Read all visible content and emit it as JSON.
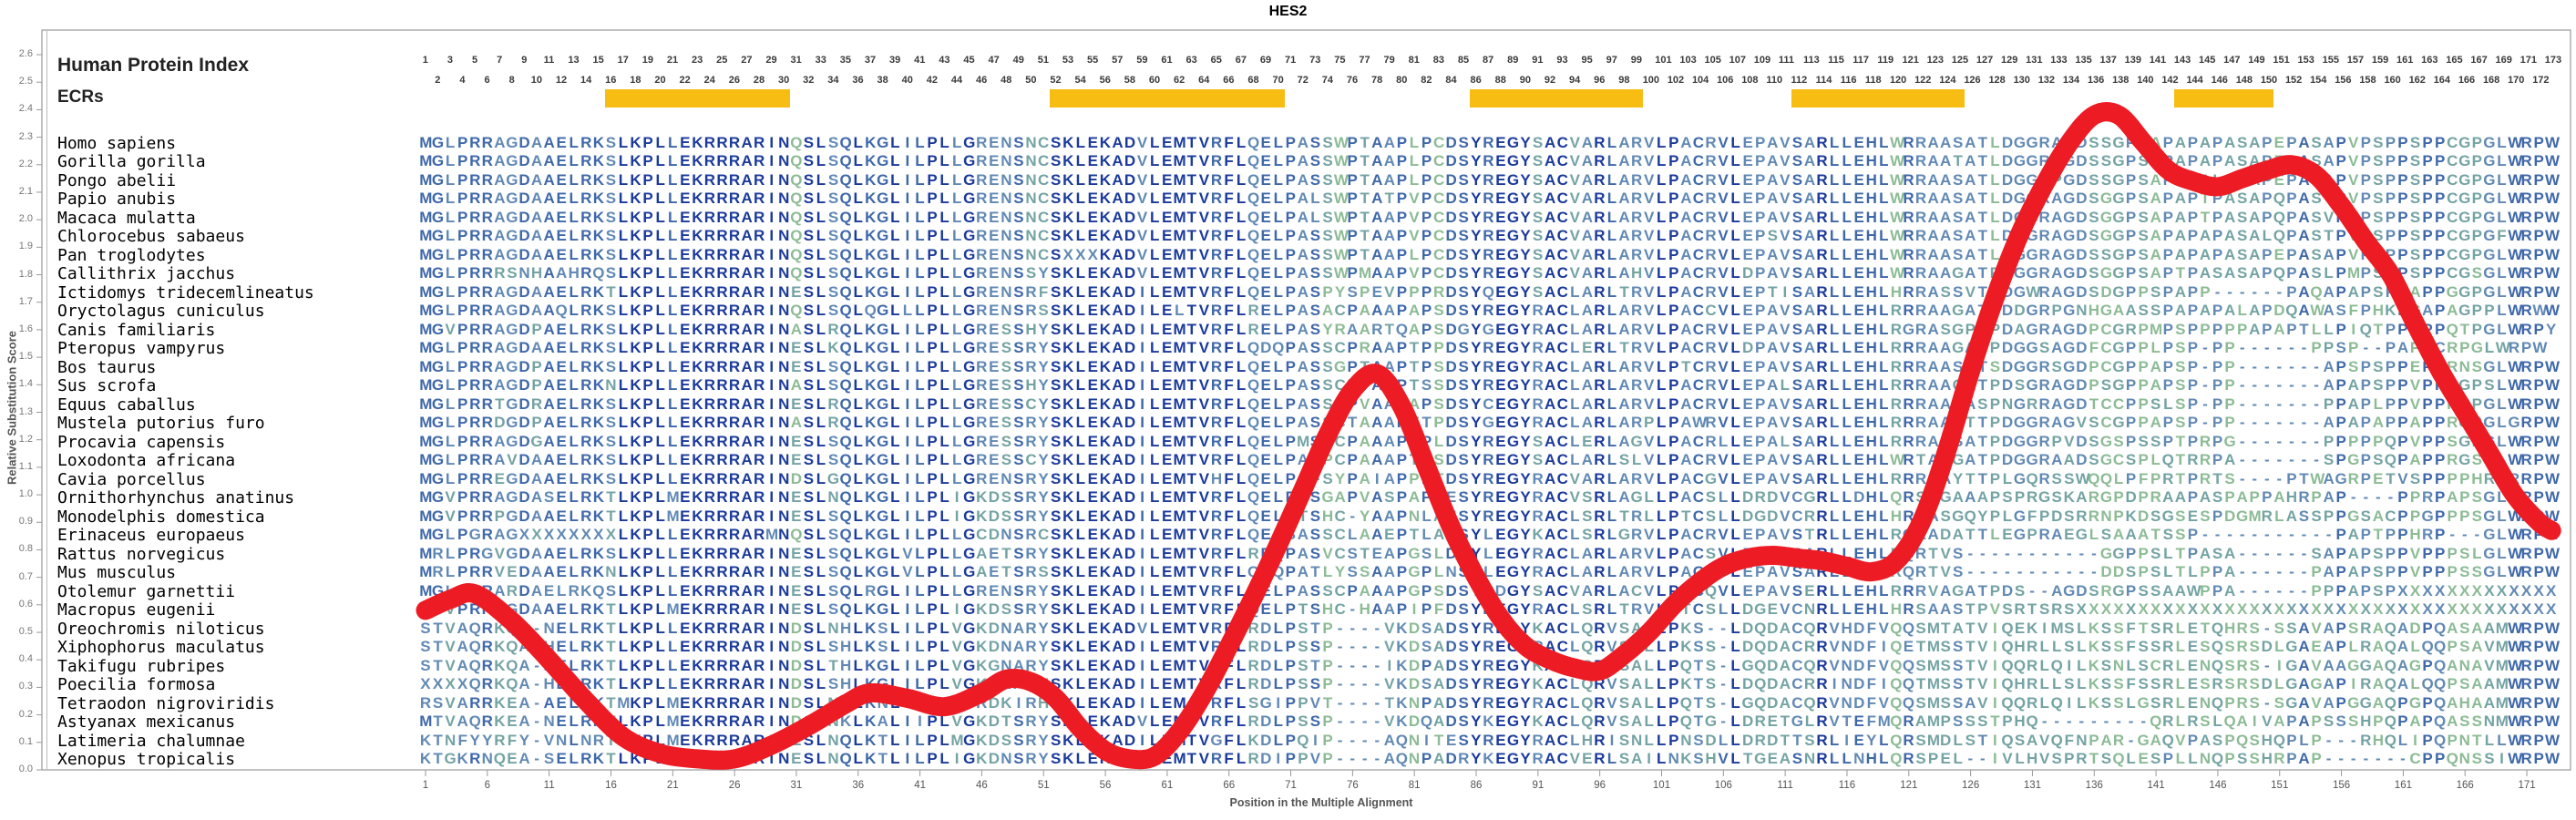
{
  "title": "HES2",
  "header": {
    "human_protein_index_label": "Human Protein Index",
    "ecrs_label": "ECRs",
    "columns": 173
  },
  "axes": {
    "y_label": "Relative Substitution Score",
    "x_label": "Position in the Multiple Alignment",
    "y_ticks": [
      "0.0",
      "0.1",
      "0.2",
      "0.3",
      "0.4",
      "0.5",
      "0.6",
      "0.7",
      "0.8",
      "0.9",
      "1.0",
      "1.1",
      "1.2",
      "1.3",
      "1.4",
      "1.5",
      "1.6",
      "1.7",
      "1.8",
      "1.9",
      "2.0",
      "2.1",
      "2.2",
      "2.3",
      "2.4",
      "2.5",
      "2.6"
    ],
    "x_ticks": [
      1,
      6,
      11,
      16,
      21,
      26,
      31,
      36,
      41,
      46,
      51,
      56,
      61,
      66,
      71,
      76,
      81,
      86,
      91,
      96,
      101,
      106,
      111,
      116,
      121,
      126,
      131,
      136,
      141,
      146,
      151,
      156,
      161,
      166,
      171
    ],
    "y_max": 2.6
  },
  "ecr_regions": [
    {
      "start": 16,
      "end": 30
    },
    {
      "start": 52,
      "end": 70
    },
    {
      "start": 86,
      "end": 99
    },
    {
      "start": 112,
      "end": 125
    },
    {
      "start": 143,
      "end": 150
    }
  ],
  "alignment": {
    "species": [
      {
        "name": "Homo sapiens",
        "sequence": "MGLPRRAGDAAELRKSLKPLLEKRRRARINQSLSQLKGLILPLLGRENSNCSKLEKADVLEMTVRFLQELPASSWPTAAPLPCDSYREGYSACVARLARVLPACRVLEPAVSARLLEHLWRRAASATLDGGRAGDSSGPSAPAPAPASAPEPASAPVPSPPSPPCGPGLWRPW"
      },
      {
        "name": "Gorilla gorilla",
        "sequence": "MGLPRRAGDAAELRKSLKPLLEKRRRARINQSLSQLKGLILPLLGRENSNCSKLEKADVLEMTVRFLQELPASSWPTAAPLPCDSYREGYSACVARLARVLPACRVLEPAVSARLLEHLWRRAATATLDGGRAGDSSGPSAPAPAPASAPEPASAPVPSPPSPPCGPGLWRPW"
      },
      {
        "name": "Pongo abelii",
        "sequence": "MGLPRRAGDAAELRKSLKPLLEKRRRARINQSLSQLKGLILPLLGRENSNCSKLEKADVLEMTVRFLQELPASSWPTAAPLPCDSYREGYSACVARLARVLPACRVLEPAVSARLLEHLWRRAASATLDGGRPGDSSGPSAPAPALASAPEPASAPVPSPPSPPCGPGLWRPW"
      },
      {
        "name": "Papio anubis",
        "sequence": "MGLPRRAGDAAELRKSLKPLLEKRRRARINQSLSQLKGLILPLLGRENSNCSKLEKADVLEMTVRFLQELPALSWPTATPVPCDSYREGYSACVARLARVLPACRVLEPAVSARLLEHLWRRAASATLDGGRAGDSGGPSAPAPTPASAPQPASVPVPSPPSPPCGPGLWRPW"
      },
      {
        "name": "Macaca mulatta",
        "sequence": "MGLPRRAGDAAELRKSLKPLLEKRRRARINQSLSQLKGLILPLLGRENSNCSKLEKADVLEMTVRFLQELPALSWPTAAPVPCDSYREGYSACVARLARVLPACRVLEPAVSARLLEHLWRRAASATLDGGRAGDSGGPSAPAPTPASAPQPASVPVPSPPSPPCGPGLWRPW"
      },
      {
        "name": "Chlorocebus sabaeus",
        "sequence": "MGLPRRAGDAAELRKSLKPLLEKRRRARINQSLSQLKGLILPLLGRENSNCSKLEKADVLEMTVRFLQELPASSWPTAAPVPCDSYREGYSACVARLARVLPACRVLEPSVSARLLEHLWRRAASATLDGGRAGDSGGPSAPAPAPASALQPASTPVPSPPSPPCGPGFWRPW"
      },
      {
        "name": "Pan troglodytes",
        "sequence": "MGLPRRAGDAAELRKSLKPLLEKRRRARINQSLSQLKGLILPLLGRENSNCSXXXKADVLEMTVRFLQELPASSWPTAAPLPCDSYREGYSACVARLARVLPACRVLEPAVSARLLEHLWRRAASATLDGGRAGDSSGPSAPAPAPASAPEPASAPVPSPPSPPCGPGLWRPW"
      },
      {
        "name": "Callithrix jacchus",
        "sequence": "MGLPRRRSNHAAHRQSLKPLLEKRRRARINQSLSQLKGLILPLLGRENSSYSKLEKADVLEMTVRFLQELPASSWPMAAPVPCDSYREGYSACVARLAHVLPACRVLDPAVSARLLEHLWRRAAGATPDGGRAGDSGGPSAPTPASASAPQPASLPMPSPPSPPCGSGLWRPW"
      },
      {
        "name": "Ictidomys tridecemlineatus",
        "sequence": "MGLPRRAGDAAELRKTLKPLLEKRRRARINESLSQLKGLILPLLGRENSRFSKLEKADILEMTVRFLQELPASPYSPEVPPPRDSYQEGYSACLARLTRVLPACRVLEPTISARLLEHLHRRASSVTPDGWRAGDSDGPPSPAPP------PAQAPAPSPPAPPGGPGLWRPW"
      },
      {
        "name": "Oryctolagus cuniculus",
        "sequence": "MGLPRRAGDAAQLRKSLKPLLEKRRRARINQSLSQLQGLLLPLLGRENSRSSKLEKADILELTVRFLRELPASACPAAAPAPSDSYREGYRACLARLARVLPACCVLEPAVSARLLEHLRRRAAGATPDDGRPGNHGAASSPAPAPALAPDQAWASFPHKPGAPAGPPLWRWW"
      },
      {
        "name": "Canis familiaris",
        "sequence": "MGVPRRAGDPAELRKSLKPLLEKRRRARINASLRQLKGLILPLLGRESSHYSKLEKADILEMTVRFLRELPASYRAARTQAPSDGYGEGYRACLARLARVLPACRVLEPAVSARLLEHLRGRASGPAPDAGRAGDPCGRPMPSPPPPPAPAPTLLPIQTPPSPPQTPGLWRPY"
      },
      {
        "name": "Pteropus vampyrus",
        "sequence": "MGLPRRAGDAAELRKSLKPLLEKRRRARINESLKQLKGLILPLLGRESSRYSKLEKADILEMTVRFLQDQPASSCPRAAPTPPDSYREGYRACLERLTRVLPACRVLDPAVSARLLEHLRRRAAGATPDGGSAGDFCGPPLPSP-PP------PPSP--PAPPCRPGLWRPW"
      },
      {
        "name": "Bos taurus",
        "sequence": "MGLPRRAGDPAELRKSLKPLLEKRRRARINESLSQLKGLILPLLGRESSRYSKLEKADILEMTVRFLQELPASSGPTAAPTPSDSYREGYRACLARLARVLPTCRVLEPAVSARLLEHLRRRAASATSDGGRSGDPCGPPAPSP-PP-------APSPSPPEPPRNSGLWRPW"
      },
      {
        "name": "Sus scrofa",
        "sequence": "MGLPRRAGDPAELRKNLKPLLEKRRRARINASLSQLKGLILPLLGRESSHYSKLEKADILEMTVRFLQELPASSCPTAAPTSSDSYREGYRACLARLARVLPACRVLEPALSARLLEHLRRRAACATPDSGRAGDPSGPPAPSP-PP-------APAPSPPVPPRGPSLWRPW"
      },
      {
        "name": "Equus caballus",
        "sequence": "MGLPRRTGDRAELRKSLKPLLEKRRRARINESLRQLKGLILPLLGRESSCYSKLEKADILEMTVRFLQELPASSCPVAAPAPSDSYCEGYRACLARLARVLPACRVLEPAVSARLLEHLRRRAAGASPNGRRAGDTCCPPSLSP-PP-------PPAPLPPVPPRGPGLWRPW"
      },
      {
        "name": "Mustela putorius furo",
        "sequence": "MGLPRRDGDPAELRKSLKPLLEKRRRARINASLRQLKGLILPLLGRESSRYSKLEKADILEMTVRFLQELPASSCTAAAPTTPDSYGEGYRACLARLARPLPAWRVLEPAVSARLLEHLRRRAAGTTPDGGRAGVSCGPPAPSP-PP-------APAPAPPAPPRGPGLGRPW"
      },
      {
        "name": "Procavia capensis",
        "sequence": "MGLPRRAGDGAELRKSLKPLLEKRRRARINESLSQLKGLILPLLGRESSRYSKLEKADILEMTVRFLQELPMSLCPAAAPTPLDSYREGYSACLERLAGVLPACRLLEPALSARLLEHLRRRAASATPDGGRPVDSGSPSSPTPRPG-------PPPPPQPVPPSGPGLWRPW"
      },
      {
        "name": "Loxodonta africana",
        "sequence": "MGLPRRAVDAAELRKSLKPLLEKRRRARINESLSQLKGLILPLLGRESSCYSKLEKADILEMTVRFLQELPASPCPAAAPTPSDSYREGYSACLARLSLVLPACRVLEPAVSARLLEHLWRTAAGATPDGGRAADSGCSPLQTRRPA-------SPGPSQPAPPRGSGLWRPW"
      },
      {
        "name": "Cavia porcellus",
        "sequence": "MGLPRREGDAAELRKSLKPLLEKRRRARINDSLGQLKGLILPLLGRENSRYSKLEKADILEMTVHFLQELPAFSYPAIAPPPTDSYREGYRACVARLARVLPACGVLEPAVSARLLEHLRRRSAYTTPLGQRSSWQQLPFPRTPRTS----PTWAGRPETVSPPPPHRPRRPW"
      },
      {
        "name": "Ornithorhynchus anatinus",
        "sequence": "MGVPRRAGDASELRKTLKPLMEKRRRARINESLNQLKGLILPLIGKDSSRYSKLEKADILEMTVRFLQELPTSGAPVASPAPAESYREGYRACVSRLAGLLPACSLLDRDVCGRLLDHLQRSGGAAAPSPRGSKARGPDPRAAPASPAPPAHRPAP----PPRPAPSGLWRPW"
      },
      {
        "name": "Monodelphis domestica",
        "sequence": "MGVPRRPGDAAELRKTLKPLMEKRRRARINESLSQLKGLILPLIGKDSSRYSKLEKADILEMTVRFLQELQTSHC-YAAPNLAESYREGYRACLSRLTRLLPTCSLLDGDVCRRLLEHLHRSASGQYPLGFPDSRRNPKDSGSESPDGMRLASSPPGSACPPGPPPSGLWRPW"
      },
      {
        "name": "Erinaceus europaeus",
        "sequence": "MGLPGRAGXXXXXXXXLKPLLEKRRRARMNQSLSQLKGLILPLLGCDNSRCSKLEKADILEMTVRFLQELSASSCLAAEPTLADSYLEGYKACLSRLGRVLPACRVLEPAVSTRLLEHLRQRADATTLEGPRAEGLSAAATSSP-----------PAPTPPHRP---GLWRPW"
      },
      {
        "name": "Rattus norvegicus",
        "sequence": "MRLPRGVGDAAELRKSLKPLLEKRRRARINESLSQLKGLVLPLLGAETSRYSKLEKADILEMTVRFLREQPASVCSTEAPGSLDSYLEGYRACLARLARVLPACSVLEPAVSARLLEHLRQRTVS-----------GGPPSLTPASA------SAPAPSPPVPPPSLGLWRPW"
      },
      {
        "name": "Mus musculus",
        "sequence": "MRLPRRVEDAAELRKNLKPLLEKRRRARINESLSQLKGLVLPLLGAETSRSSKLEKADILEMTVRFLQEQPATLYSSAAPGPLNSYLEGYRACLARLARVLPACSVLEPAVSARLLEHLRQRTVS-----------DDSPSLTLPPA------PAPAPSPPVPPPSSGLWRPW"
      },
      {
        "name": "Otolemur garnettii",
        "sequence": "MGLPRRARDAELRKQSLKPLLEKRRRARINESLSQLRGLILPLLGRENSRYSKLEKADILEMTVRFLQELPASSCPAAAPGPSDSYRDGYSACVARLACVLPACQVLEPAVSERLLEHLRRRVAGATPDS--AGDSRGPSSAAWPPA------PPPAPSPXXXXXXXXXXXXX"
      },
      {
        "name": "Macropus eugenii",
        "sequence": "MGVPRRPGDAAELRKTLKPLMEKRRRARINESLSQLKGLILPLIGKDSSRYSKLEKADILEMTVRFLQELPTSHC-HAAPIPFDSYREGYRACLSRLTRVLPTCSLLDGEVCNRLLEHLHRSAASTPVSRTSRSXXXXXXXXXXXXXXXXXXXXXXXXXXXXXXXXXXXXXXX"
      },
      {
        "name": "Oreochromis niloticus",
        "sequence": "STVAQRKQA-NELRKTLKPLLEKRRRARINDSLNHLKSLILPLVGKDNARYSKLEKADVLEMTVRFLRDLPSTP----VKDSADSYREGYKACLQRVSALLPKS--LDQDACQRVHDFVQQSMTATVIQEKIMSLKSSFTSRLETQHRS-SSAVAPSRAQADPQASAAMWRPW"
      },
      {
        "name": "Xiphophorus maculatus",
        "sequence": "STVAQRKQA-HELRKTLKPLLEKRRRARINDSLSHLKSLILPLVGKDNARYSKLEKADILEMTVRFLRDLPSSP----VKDSADSYREGYRACLQRVSALLPKSS-LDQDACRRVNDFIQETMSSTVIQHRLLSLKSSFSSRLESQSRSDLGAEAPLRAQALQQPSAVMWRPW"
      },
      {
        "name": "Takifugu rubripes",
        "sequence": "STVAQRKQA-NELRKTLKPLLEKRRRARINDSLTHLKGLILPLVGKGNARYSKLEKADILEMTVRFLRDLPSTP----IKDPADSYREGYKACLQRVSALLPQTS-LGQDACQRVNDFVQQSMSSTVIQQRLQILKSNLSCRLENQSRS-IGAVAAGGAQAGPQANAVMWRPW"
      },
      {
        "name": "Poecilia formosa",
        "sequence": "XXXXQRKQA-HELRKTLKPLLEKRRRARINDSLSHLKGLILPLVGKDNARYSKLEKADILEMTVRFLRDLPSSP----VKDSADSYREGYKACLQRVSALLPKTS-LDQDACRRINDFIQQTMSSTVIQHRLLSLKSSFSSRLESRSRSDLGAGAPIRAQALQQPSAAMWRPW"
      },
      {
        "name": "Tetraodon nigroviridis",
        "sequence": "RSVARRKEA-AELRKTMKPLMEKRRRARINDSLNKLKNLIIPLTGRDKIRHSKLEKADILEMAVRFLSGIPPVT----TKNPADSYREGYRACLQRVSALLPQTS-LGQDACQRVNDFVQQSMSSAVIQQRLQILKSSLGSRLENQPRS-SGAVAPGGAQPGPQAHAAMWRPW"
      },
      {
        "name": "Astyanax mexicanus",
        "sequence": "MTVAQRKEA-NELRKTLKPLMEKRRRARINDSLNKLKALIIPLVGKDTSRYSKLEKADVLEMTVRFLRDLPSSP----VKDQADSYKEGYKACLQRVSALLPQTG-LDRETGLRVTEFMQRAMPSSSTPHQ---------QRLRSLQAIVAPAPSSSHPQPAPQASSNMWRPW"
      },
      {
        "name": "Latimeria chalumnae",
        "sequence": "KTNFYYRFY-VNLNRTLKPLMEKRRRARINESLNQLKTLILPLMGKDSSRYSKLEKADILEMTVGFLKDLPQIP----AQNITESYREGYRACLHRISNLLPNSDLLDRDTTSRLIEYLQRSMDLSTIQSAVQFNPAR-GAQVPASPQSHQPLP---RHQLIPQPNTLLWRPW"
      },
      {
        "name": "Xenopus tropicalis",
        "sequence": "KTGKRNQEA-SELRKTLKPLMEKRRRARINESLNQLKTLILPLIGKDNSRYSKLEKADILEMTVRFLRDIPPVP----AQNPADRYKEGYRACVERLSAILNKSHVLTGEASNRLLNHLQRSPEL--IVLHVSPRTSQLESPLLNQPSSHRPAP-------CPPQNSSIWRPW"
      }
    ]
  },
  "chart_data": {
    "type": "line",
    "title": "HES2",
    "xlabel": "Position in the Multiple Alignment",
    "ylabel": "Relative Substitution Score",
    "xlim": [
      1,
      173
    ],
    "ylim": [
      0,
      2.6
    ],
    "grid": false,
    "legend": "none",
    "series_name": "relative substitution score curve",
    "x": [
      1,
      3,
      5,
      8,
      11,
      14,
      17,
      20,
      23,
      26,
      29,
      32,
      35,
      37,
      40,
      43,
      46,
      48,
      50,
      52,
      54,
      56,
      58,
      60,
      62,
      64,
      66,
      68,
      70,
      72,
      74,
      76,
      78,
      80,
      82,
      84,
      86,
      88,
      90,
      92,
      94,
      96,
      98,
      100,
      102,
      104,
      106,
      108,
      110,
      112,
      114,
      116,
      118,
      120,
      122,
      124,
      126,
      128,
      130,
      132,
      134,
      136,
      138,
      140,
      142,
      144,
      146,
      148,
      150,
      152,
      154,
      156,
      158,
      160,
      162,
      164,
      166,
      168,
      170,
      172,
      173
    ],
    "y": [
      0.58,
      0.62,
      0.64,
      0.54,
      0.4,
      0.25,
      0.12,
      0.06,
      0.04,
      0.04,
      0.09,
      0.16,
      0.24,
      0.28,
      0.26,
      0.23,
      0.28,
      0.33,
      0.32,
      0.26,
      0.15,
      0.07,
      0.04,
      0.05,
      0.14,
      0.28,
      0.45,
      0.63,
      0.82,
      1.02,
      1.22,
      1.38,
      1.44,
      1.32,
      1.1,
      0.88,
      0.7,
      0.55,
      0.45,
      0.4,
      0.37,
      0.36,
      0.42,
      0.5,
      0.6,
      0.68,
      0.74,
      0.77,
      0.78,
      0.77,
      0.76,
      0.74,
      0.72,
      0.76,
      0.9,
      1.15,
      1.45,
      1.72,
      1.95,
      2.13,
      2.28,
      2.38,
      2.38,
      2.28,
      2.18,
      2.14,
      2.12,
      2.15,
      2.18,
      2.2,
      2.16,
      2.05,
      1.92,
      1.8,
      1.62,
      1.45,
      1.3,
      1.15,
      1.0,
      0.9,
      0.87
    ]
  },
  "colors": {
    "conserved_letter": "#1b3a9b",
    "high_letter": "#3f68a9",
    "mid_letter": "#6189b4",
    "low_letter": "#74a3a3",
    "variable_letter": "#8cbb95",
    "curve": "#ed1c24",
    "ecr_bar": "#f7bd13",
    "axis": "#999999",
    "labels": "#555555",
    "numbers": "#3a3a3a",
    "species_text": "#000000"
  }
}
